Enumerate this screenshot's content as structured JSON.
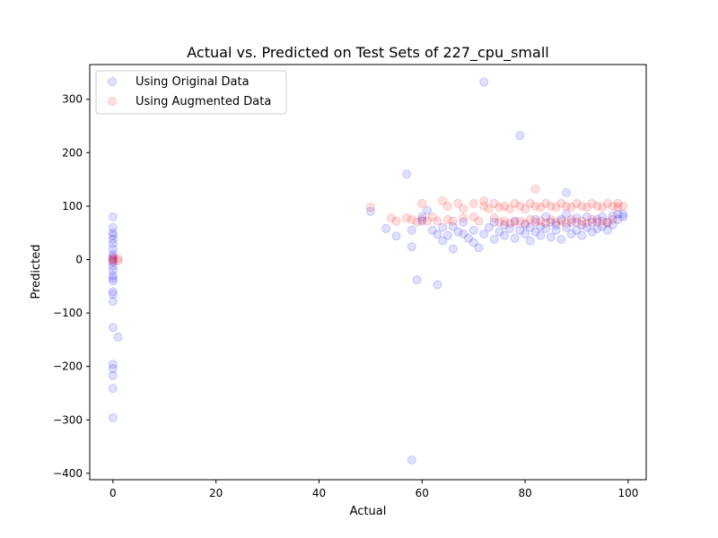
{
  "chart_data": {
    "type": "scatter",
    "title": "Actual vs. Predicted on Test Sets of 227_cpu_small",
    "xlabel": "Actual",
    "ylabel": "Predicted",
    "xlim": [
      -4.5,
      103.5
    ],
    "ylim": [
      -412,
      365
    ],
    "xticks": [
      0,
      20,
      40,
      60,
      80,
      100
    ],
    "yticks": [
      -400,
      -300,
      -200,
      -100,
      0,
      100,
      200,
      300
    ],
    "grid": false,
    "legend_position": "upper-left",
    "colors": {
      "original": "#0000ff",
      "augmented": "#ff0000"
    },
    "series": [
      {
        "name": "Using Original Data",
        "color": "#0000ff",
        "points": [
          [
            0,
            80
          ],
          [
            0,
            60
          ],
          [
            0,
            50
          ],
          [
            0,
            45
          ],
          [
            0,
            38
          ],
          [
            0,
            30
          ],
          [
            0,
            20
          ],
          [
            0,
            10
          ],
          [
            0,
            5
          ],
          [
            0,
            0
          ],
          [
            0,
            -5
          ],
          [
            0,
            -12
          ],
          [
            0,
            -20
          ],
          [
            0,
            -30
          ],
          [
            0,
            -35
          ],
          [
            0,
            -40
          ],
          [
            0,
            -60
          ],
          [
            0,
            -65
          ],
          [
            0,
            -78
          ],
          [
            0,
            -127
          ],
          [
            0,
            -196
          ],
          [
            0,
            -204
          ],
          [
            0,
            -217
          ],
          [
            0,
            -241
          ],
          [
            0,
            -296
          ],
          [
            1,
            -145
          ],
          [
            50,
            90
          ],
          [
            53,
            58
          ],
          [
            55,
            44
          ],
          [
            57,
            160
          ],
          [
            58,
            24
          ],
          [
            58,
            55
          ],
          [
            58,
            -375
          ],
          [
            59,
            -38
          ],
          [
            60,
            72
          ],
          [
            60,
            80
          ],
          [
            61,
            92
          ],
          [
            62,
            55
          ],
          [
            63,
            -47
          ],
          [
            63,
            47
          ],
          [
            64,
            35
          ],
          [
            64,
            60
          ],
          [
            65,
            45
          ],
          [
            66,
            20
          ],
          [
            66,
            62
          ],
          [
            67,
            52
          ],
          [
            68,
            48
          ],
          [
            68,
            70
          ],
          [
            69,
            40
          ],
          [
            70,
            32
          ],
          [
            70,
            55
          ],
          [
            71,
            22
          ],
          [
            72,
            332
          ],
          [
            72,
            48
          ],
          [
            73,
            60
          ],
          [
            74,
            38
          ],
          [
            74,
            70
          ],
          [
            75,
            52
          ],
          [
            76,
            45
          ],
          [
            76,
            65
          ],
          [
            77,
            58
          ],
          [
            78,
            40
          ],
          [
            78,
            72
          ],
          [
            79,
            232
          ],
          [
            79,
            55
          ],
          [
            80,
            48
          ],
          [
            80,
            65
          ],
          [
            81,
            35
          ],
          [
            81,
            60
          ],
          [
            82,
            52
          ],
          [
            82,
            75
          ],
          [
            83,
            45
          ],
          [
            83,
            62
          ],
          [
            84,
            58
          ],
          [
            84,
            80
          ],
          [
            85,
            42
          ],
          [
            85,
            70
          ],
          [
            86,
            55
          ],
          [
            86,
            65
          ],
          [
            87,
            38
          ],
          [
            87,
            75
          ],
          [
            88,
            125
          ],
          [
            88,
            60
          ],
          [
            88,
            85
          ],
          [
            89,
            48
          ],
          [
            89,
            70
          ],
          [
            90,
            55
          ],
          [
            90,
            78
          ],
          [
            91,
            45
          ],
          [
            91,
            65
          ],
          [
            92,
            60
          ],
          [
            92,
            80
          ],
          [
            93,
            52
          ],
          [
            93,
            70
          ],
          [
            94,
            58
          ],
          [
            94,
            75
          ],
          [
            95,
            62
          ],
          [
            95,
            80
          ],
          [
            96,
            55
          ],
          [
            96,
            70
          ],
          [
            97,
            65
          ],
          [
            97,
            82
          ],
          [
            98,
            75
          ],
          [
            98,
            85
          ],
          [
            99,
            80
          ],
          [
            99,
            85
          ]
        ]
      },
      {
        "name": "Using Augmented Data",
        "color": "#ff0000",
        "points": [
          [
            0,
            0
          ],
          [
            0,
            3
          ],
          [
            0,
            -3
          ],
          [
            1,
            2
          ],
          [
            1,
            -2
          ],
          [
            50,
            98
          ],
          [
            54,
            78
          ],
          [
            55,
            72
          ],
          [
            57,
            78
          ],
          [
            58,
            75
          ],
          [
            59,
            70
          ],
          [
            60,
            75
          ],
          [
            60,
            105
          ],
          [
            61,
            72
          ],
          [
            62,
            80
          ],
          [
            63,
            72
          ],
          [
            64,
            110
          ],
          [
            65,
            75
          ],
          [
            65,
            100
          ],
          [
            66,
            72
          ],
          [
            67,
            105
          ],
          [
            68,
            78
          ],
          [
            68,
            95
          ],
          [
            70,
            80
          ],
          [
            70,
            105
          ],
          [
            71,
            72
          ],
          [
            72,
            100
          ],
          [
            72,
            110
          ],
          [
            73,
            95
          ],
          [
            74,
            78
          ],
          [
            74,
            105
          ],
          [
            75,
            70
          ],
          [
            75,
            98
          ],
          [
            76,
            72
          ],
          [
            76,
            100
          ],
          [
            77,
            68
          ],
          [
            77,
            95
          ],
          [
            78,
            70
          ],
          [
            78,
            105
          ],
          [
            79,
            72
          ],
          [
            79,
            100
          ],
          [
            80,
            68
          ],
          [
            80,
            95
          ],
          [
            81,
            75
          ],
          [
            81,
            105
          ],
          [
            82,
            132
          ],
          [
            82,
            70
          ],
          [
            82,
            100
          ],
          [
            83,
            72
          ],
          [
            83,
            98
          ],
          [
            84,
            68
          ],
          [
            84,
            105
          ],
          [
            85,
            75
          ],
          [
            85,
            100
          ],
          [
            86,
            70
          ],
          [
            86,
            98
          ],
          [
            87,
            72
          ],
          [
            87,
            105
          ],
          [
            88,
            68
          ],
          [
            88,
            100
          ],
          [
            89,
            75
          ],
          [
            89,
            98
          ],
          [
            90,
            70
          ],
          [
            90,
            105
          ],
          [
            91,
            72
          ],
          [
            91,
            100
          ],
          [
            92,
            68
          ],
          [
            92,
            98
          ],
          [
            93,
            75
          ],
          [
            93,
            105
          ],
          [
            94,
            70
          ],
          [
            94,
            100
          ],
          [
            95,
            72
          ],
          [
            95,
            98
          ],
          [
            96,
            68
          ],
          [
            96,
            105
          ],
          [
            97,
            75
          ],
          [
            97,
            100
          ],
          [
            98,
            98
          ],
          [
            98,
            105
          ],
          [
            99,
            100
          ]
        ]
      }
    ]
  }
}
